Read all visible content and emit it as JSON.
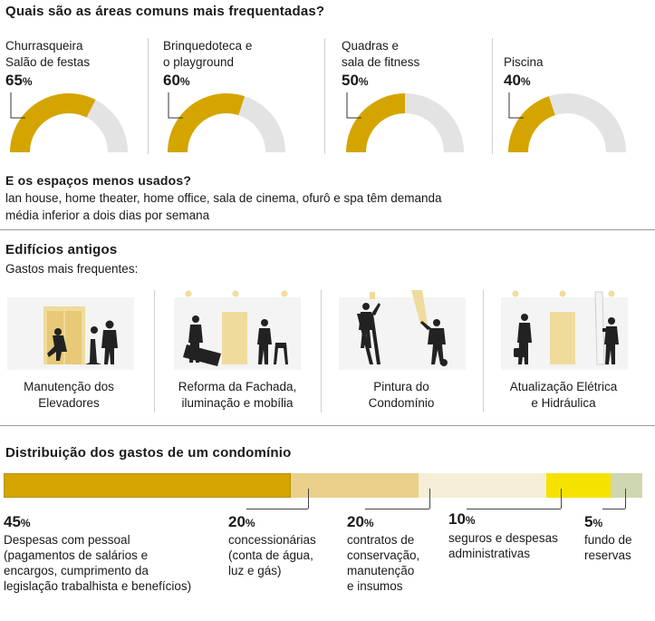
{
  "section1": {
    "title": "Quais são as áreas comuns mais frequentadas?",
    "gauge_color": "#d4a500",
    "track_color": "#e3e3e3"
  },
  "section2": {
    "title": "E os espaços menos usados?",
    "body_line1": "lan house, home theater, home office, sala de cinema, ofurô e spa têm demanda",
    "body_line2": "média inferior a dois dias por semana"
  },
  "section3": {
    "title": "Edifícios antigos",
    "subtitle": "Gastos mais frequentes:",
    "items": [
      {
        "label1": "Manutenção dos",
        "label2": "Elevadores",
        "icon": "elevator-maintenance-icon"
      },
      {
        "label1": "Reforma da Fachada,",
        "label2": "iluminação e mobília",
        "icon": "facade-renovation-icon"
      },
      {
        "label1": "Pintura do",
        "label2": "Condomínio",
        "icon": "painting-icon"
      },
      {
        "label1": "Atualização Elétrica",
        "label2": "e Hidráulica",
        "icon": "electrical-plumbing-icon"
      }
    ]
  },
  "section4": {
    "title": "Distribuição dos gastos de um condomínio"
  },
  "chart_data": [
    {
      "type": "pie",
      "title": "Quais são as áreas comuns mais frequentadas?",
      "unit": "%",
      "series": [
        {
          "label_lines": [
            "Churrasqueira",
            "Salão de festas"
          ],
          "value": 65,
          "value_text": "65",
          "unit_text": "%"
        },
        {
          "label_lines": [
            "Brinquedoteca e",
            "o playground"
          ],
          "value": 60,
          "value_text": "60",
          "unit_text": "%"
        },
        {
          "label_lines": [
            "Quadras e",
            "sala de fitness"
          ],
          "value": 50,
          "value_text": "50",
          "unit_text": "%"
        },
        {
          "label_lines": [
            "",
            "Piscina"
          ],
          "value": 40,
          "value_text": "40",
          "unit_text": "%"
        }
      ]
    },
    {
      "type": "bar",
      "title": "Distribuição dos gastos de um condomínio",
      "unit": "%",
      "stacked": true,
      "segments": [
        {
          "value": 45,
          "value_text": "45",
          "unit_text": "%",
          "color": "#d4a500",
          "label_lines": [
            "Despesas com pessoal",
            "(pagamentos de salários e",
            "encargos, cumprimento da",
            "legislação trabalhista e benefícios)"
          ]
        },
        {
          "value": 20,
          "value_text": "20",
          "unit_text": "%",
          "color": "#ead08a",
          "label_lines": [
            "concessionárias",
            "(conta de água,",
            "luz e gás)"
          ]
        },
        {
          "value": 20,
          "value_text": "20",
          "unit_text": "%",
          "color": "#f6eed6",
          "label_lines": [
            "contratos de",
            "conservação,",
            "manutenção",
            "e insumos"
          ]
        },
        {
          "value": 10,
          "value_text": "10",
          "unit_text": "%",
          "color": "#f6e200",
          "label_lines": [
            "seguros e despesas",
            "administrativas"
          ]
        },
        {
          "value": 5,
          "value_text": "5",
          "unit_text": "%",
          "color": "#cfd6b2",
          "label_lines": [
            "fundo de",
            "reservas"
          ]
        }
      ]
    }
  ]
}
